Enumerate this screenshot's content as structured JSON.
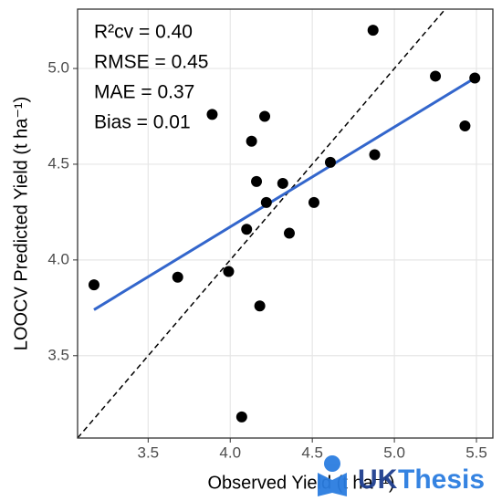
{
  "chart_data": {
    "type": "scatter",
    "x_label": "Observed Yield (t ha⁻¹)",
    "y_label": "LOOCV Predicted Yield (t ha⁻¹)",
    "annotations": [
      "R²cv = 0.40",
      "RMSE = 0.45",
      "MAE = 0.37",
      "Bias = 0.01"
    ],
    "x": [
      3.17,
      3.68,
      3.89,
      3.99,
      4.1,
      4.13,
      4.21,
      4.16,
      4.22,
      4.18,
      4.07,
      4.32,
      4.36,
      4.51,
      4.61,
      4.87,
      4.88,
      5.25,
      5.43,
      5.49
    ],
    "values": [
      3.87,
      3.91,
      4.76,
      3.94,
      4.16,
      4.62,
      4.75,
      4.41,
      4.3,
      3.76,
      3.18,
      4.4,
      4.14,
      4.3,
      4.51,
      5.2,
      4.55,
      4.96,
      4.7,
      4.95
    ],
    "color": "#000000",
    "fit_line": {
      "x": [
        3.17,
        5.49
      ],
      "y": [
        3.74,
        4.95
      ],
      "color": "#3366cc"
    },
    "reference_line": {
      "x": [
        3.07,
        5.31
      ],
      "y": [
        3.07,
        5.31
      ],
      "color": "#000000"
    },
    "xlim": [
      3.07,
      5.6
    ],
    "ylim": [
      3.07,
      5.31
    ],
    "xticks": [
      3.5,
      {
        "value": 4,
        "label": "4.0"
      },
      4.5,
      {
        "value": 5,
        "label": "5.0"
      },
      5.5
    ],
    "yticks": [
      3.5,
      {
        "value": 4,
        "label": "4.0"
      },
      4.5,
      {
        "value": 5,
        "label": "5.0"
      }
    ],
    "grid": true,
    "watermark": [
      "UK",
      "Thesis"
    ]
  }
}
